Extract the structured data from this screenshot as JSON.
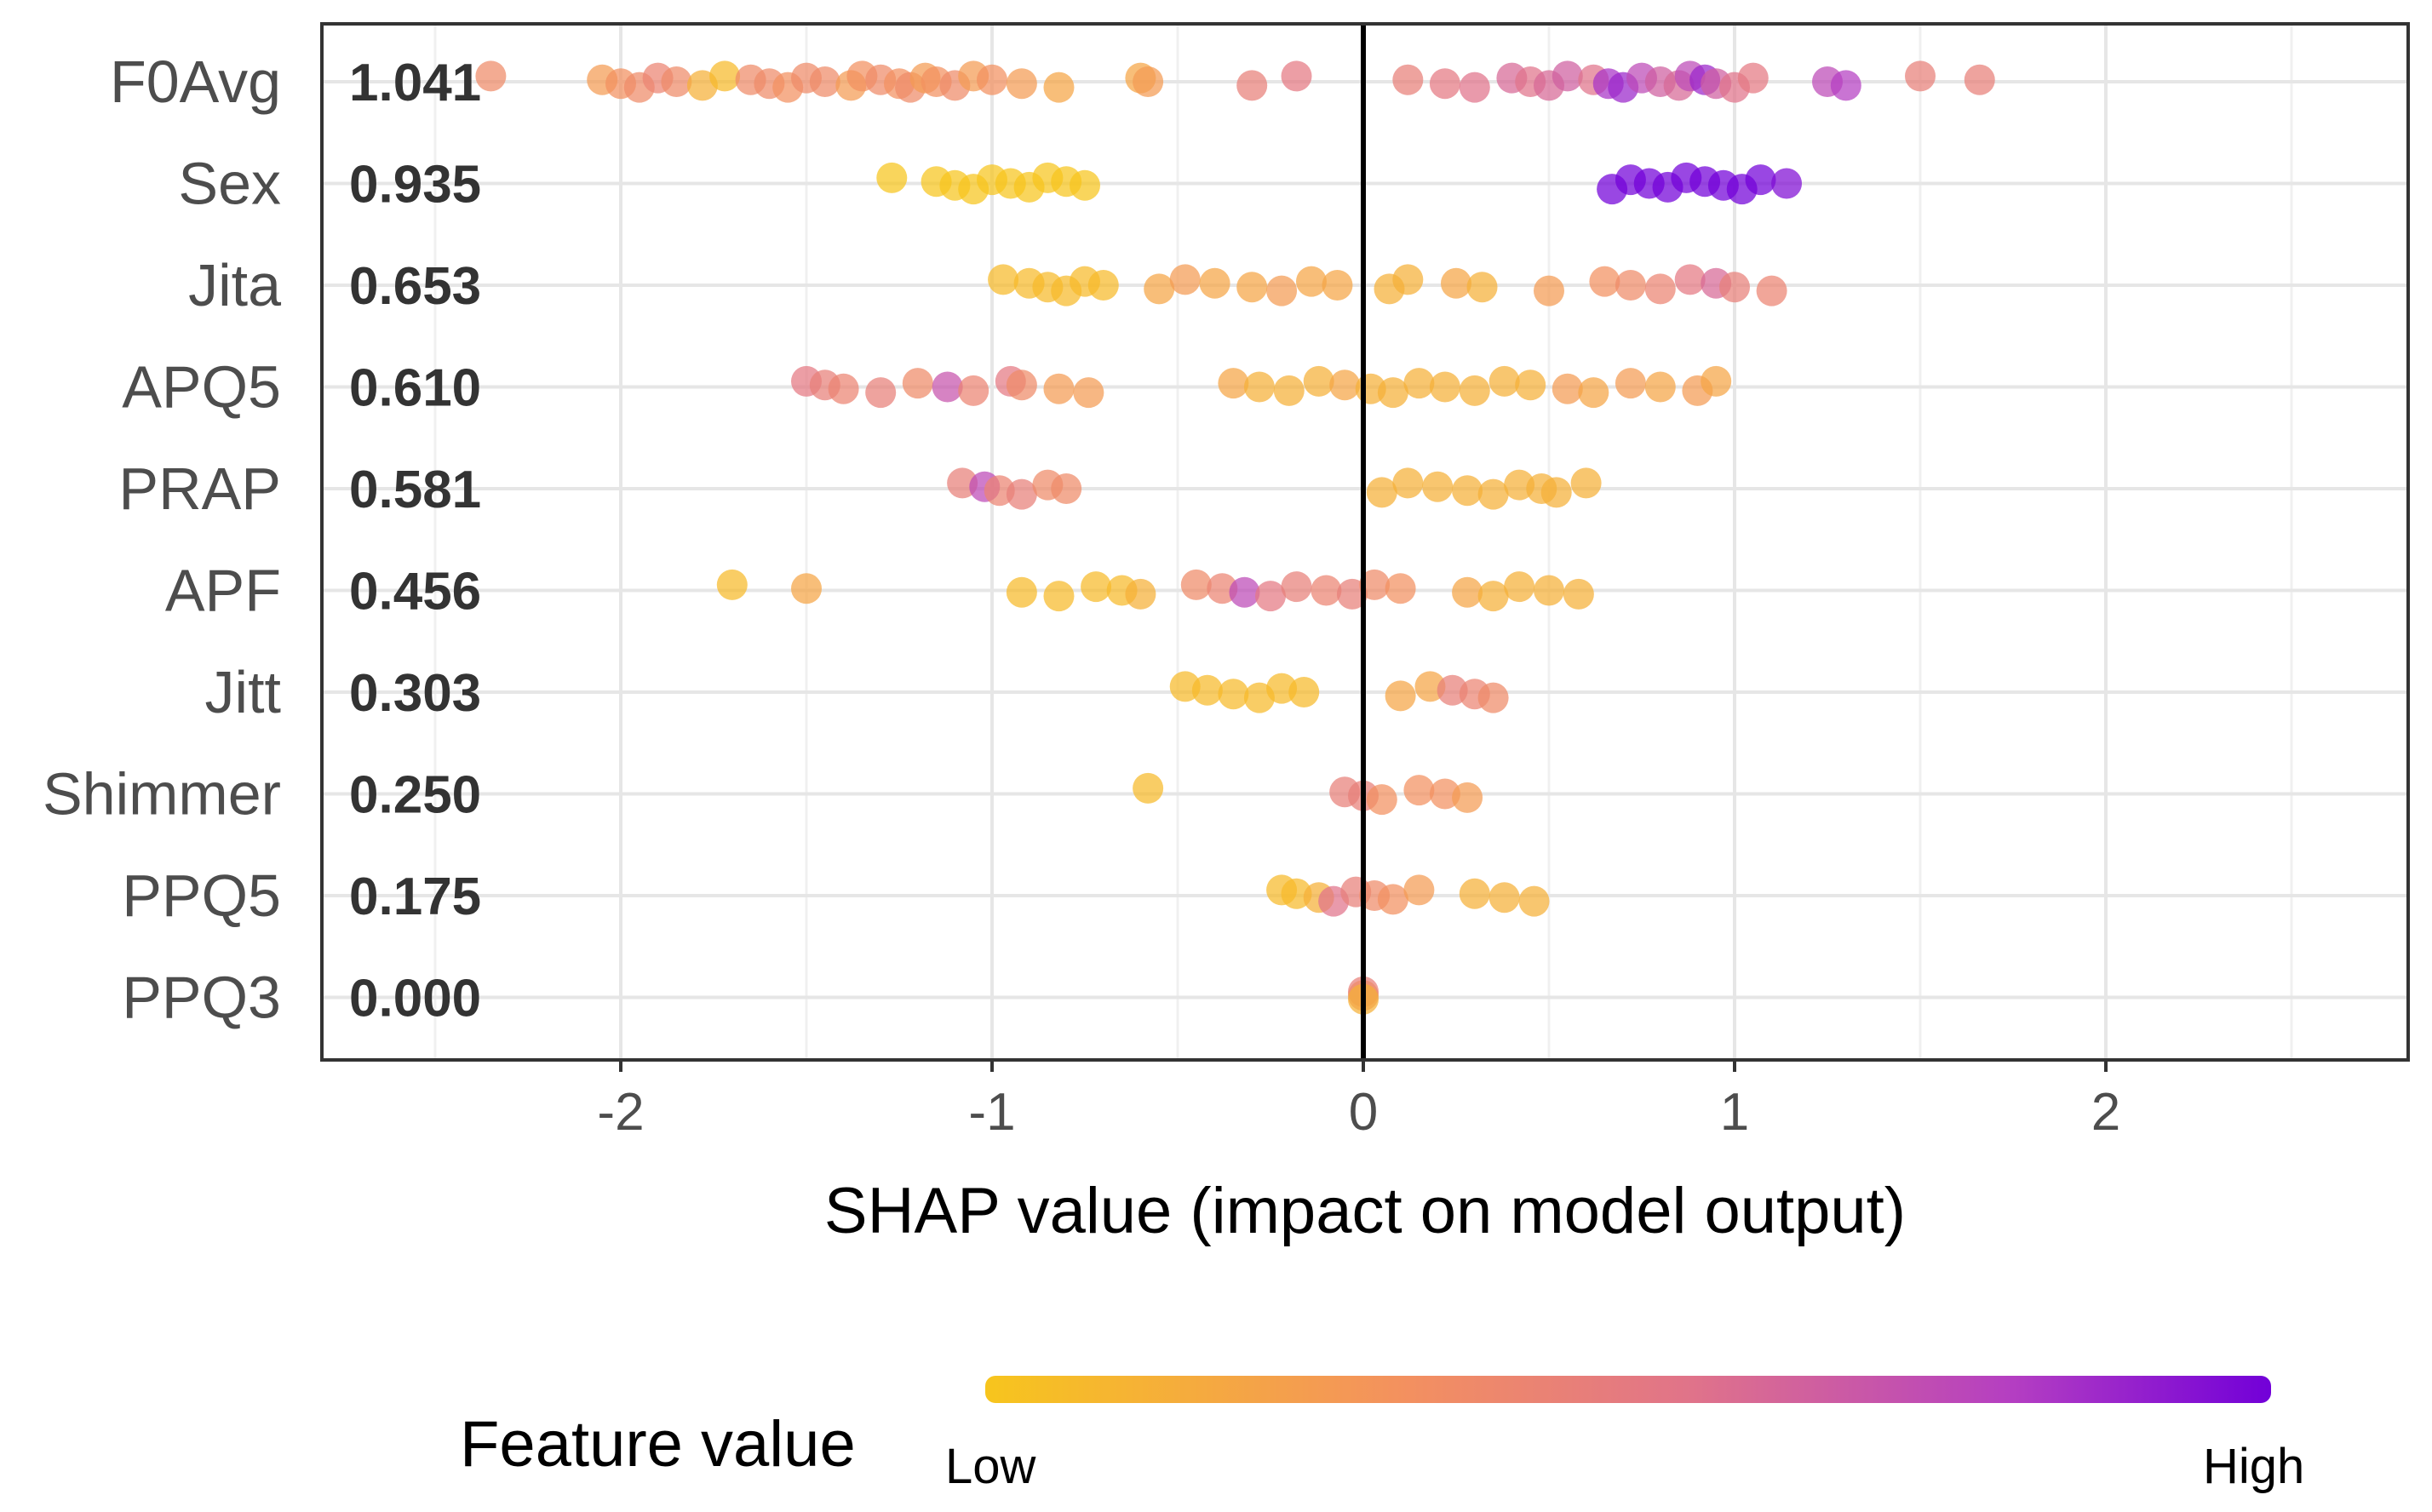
{
  "chart_data": {
    "type": "scatter",
    "title": "",
    "xlabel": "SHAP value (impact on model output)",
    "ylabel": "",
    "xlim": [
      -2.8,
      2.8
    ],
    "xticks": [
      -2,
      -1,
      0,
      1,
      2
    ],
    "xtick_labels": [
      "-2",
      "-1",
      "0",
      "1",
      "2"
    ],
    "grid": true,
    "zero_line": true,
    "features": [
      {
        "name": "F0Avg",
        "importance": "1.041",
        "points": [
          [
            -2.35,
            0.3
          ],
          [
            -2.05,
            0.2
          ],
          [
            -2.0,
            0.25
          ],
          [
            -1.95,
            0.3
          ],
          [
            -1.9,
            0.35
          ],
          [
            -1.85,
            0.3
          ],
          [
            -1.78,
            0.1
          ],
          [
            -1.72,
            0.05
          ],
          [
            -1.65,
            0.3
          ],
          [
            -1.6,
            0.3
          ],
          [
            -1.55,
            0.25
          ],
          [
            -1.5,
            0.3
          ],
          [
            -1.45,
            0.3
          ],
          [
            -1.38,
            0.2
          ],
          [
            -1.35,
            0.25
          ],
          [
            -1.3,
            0.3
          ],
          [
            -1.25,
            0.25
          ],
          [
            -1.22,
            0.3
          ],
          [
            -1.18,
            0.2
          ],
          [
            -1.15,
            0.25
          ],
          [
            -1.1,
            0.3
          ],
          [
            -1.05,
            0.2
          ],
          [
            -1.0,
            0.25
          ],
          [
            -0.92,
            0.2
          ],
          [
            -0.82,
            0.15
          ],
          [
            -0.6,
            0.15
          ],
          [
            -0.58,
            0.2
          ],
          [
            -0.3,
            0.4
          ],
          [
            -0.18,
            0.45
          ],
          [
            0.12,
            0.4
          ],
          [
            0.22,
            0.45
          ],
          [
            0.3,
            0.5
          ],
          [
            0.4,
            0.55
          ],
          [
            0.45,
            0.5
          ],
          [
            0.5,
            0.55
          ],
          [
            0.55,
            0.6
          ],
          [
            0.62,
            0.5
          ],
          [
            0.66,
            0.8
          ],
          [
            0.7,
            0.85
          ],
          [
            0.75,
            0.7
          ],
          [
            0.8,
            0.6
          ],
          [
            0.85,
            0.55
          ],
          [
            0.88,
            0.7
          ],
          [
            0.92,
            0.85
          ],
          [
            0.95,
            0.6
          ],
          [
            1.0,
            0.5
          ],
          [
            1.05,
            0.45
          ],
          [
            1.25,
            0.7
          ],
          [
            1.3,
            0.75
          ],
          [
            1.5,
            0.4
          ],
          [
            1.66,
            0.4
          ]
        ]
      },
      {
        "name": "Sex",
        "importance": "0.935",
        "points": [
          [
            -1.27,
            0.0
          ],
          [
            -1.15,
            0.0
          ],
          [
            -1.1,
            0.0
          ],
          [
            -1.05,
            0.0
          ],
          [
            -1.0,
            0.0
          ],
          [
            -0.95,
            0.0
          ],
          [
            -0.9,
            0.0
          ],
          [
            -0.85,
            0.0
          ],
          [
            -0.8,
            0.0
          ],
          [
            -0.75,
            0.0
          ],
          [
            0.67,
            1.0
          ],
          [
            0.72,
            1.0
          ],
          [
            0.77,
            1.0
          ],
          [
            0.82,
            1.0
          ],
          [
            0.87,
            1.0
          ],
          [
            0.92,
            1.0
          ],
          [
            0.97,
            1.0
          ],
          [
            1.02,
            1.0
          ],
          [
            1.07,
            1.0
          ],
          [
            1.14,
            0.95
          ]
        ]
      },
      {
        "name": "Jita",
        "importance": "0.653",
        "points": [
          [
            -0.97,
            0.05
          ],
          [
            -0.9,
            0.05
          ],
          [
            -0.85,
            0.05
          ],
          [
            -0.8,
            0.05
          ],
          [
            -0.75,
            0.05
          ],
          [
            -0.7,
            0.05
          ],
          [
            -0.55,
            0.15
          ],
          [
            -0.48,
            0.2
          ],
          [
            -0.4,
            0.15
          ],
          [
            -0.3,
            0.15
          ],
          [
            -0.22,
            0.2
          ],
          [
            -0.14,
            0.15
          ],
          [
            -0.07,
            0.15
          ],
          [
            0.07,
            0.1
          ],
          [
            0.12,
            0.1
          ],
          [
            0.25,
            0.15
          ],
          [
            0.32,
            0.1
          ],
          [
            0.5,
            0.2
          ],
          [
            0.65,
            0.25
          ],
          [
            0.72,
            0.3
          ],
          [
            0.8,
            0.35
          ],
          [
            0.88,
            0.45
          ],
          [
            0.95,
            0.55
          ],
          [
            1.0,
            0.4
          ],
          [
            1.1,
            0.35
          ]
        ]
      },
      {
        "name": "APQ5",
        "importance": "0.610",
        "points": [
          [
            -1.5,
            0.45
          ],
          [
            -1.45,
            0.4
          ],
          [
            -1.4,
            0.35
          ],
          [
            -1.3,
            0.4
          ],
          [
            -1.2,
            0.3
          ],
          [
            -1.12,
            0.65
          ],
          [
            -1.05,
            0.35
          ],
          [
            -0.95,
            0.45
          ],
          [
            -0.92,
            0.3
          ],
          [
            -0.82,
            0.2
          ],
          [
            -0.74,
            0.2
          ],
          [
            -0.35,
            0.15
          ],
          [
            -0.28,
            0.1
          ],
          [
            -0.2,
            0.1
          ],
          [
            -0.12,
            0.1
          ],
          [
            -0.05,
            0.15
          ],
          [
            0.02,
            0.1
          ],
          [
            0.08,
            0.1
          ],
          [
            0.15,
            0.1
          ],
          [
            0.22,
            0.1
          ],
          [
            0.3,
            0.1
          ],
          [
            0.38,
            0.1
          ],
          [
            0.45,
            0.1
          ],
          [
            0.55,
            0.2
          ],
          [
            0.62,
            0.15
          ],
          [
            0.72,
            0.2
          ],
          [
            0.8,
            0.15
          ],
          [
            0.9,
            0.2
          ],
          [
            0.95,
            0.15
          ]
        ]
      },
      {
        "name": "PRAP",
        "importance": "0.581",
        "points": [
          [
            -1.08,
            0.4
          ],
          [
            -1.02,
            0.7
          ],
          [
            -0.98,
            0.35
          ],
          [
            -0.92,
            0.4
          ],
          [
            -0.85,
            0.3
          ],
          [
            -0.8,
            0.3
          ],
          [
            0.05,
            0.1
          ],
          [
            0.12,
            0.1
          ],
          [
            0.2,
            0.1
          ],
          [
            0.28,
            0.1
          ],
          [
            0.35,
            0.1
          ],
          [
            0.42,
            0.1
          ],
          [
            0.48,
            0.1
          ],
          [
            0.52,
            0.1
          ],
          [
            0.6,
            0.1
          ]
        ]
      },
      {
        "name": "APF",
        "importance": "0.456",
        "points": [
          [
            -1.7,
            0.05
          ],
          [
            -1.5,
            0.15
          ],
          [
            -0.92,
            0.05
          ],
          [
            -0.82,
            0.05
          ],
          [
            -0.72,
            0.05
          ],
          [
            -0.65,
            0.05
          ],
          [
            -0.6,
            0.1
          ],
          [
            -0.45,
            0.3
          ],
          [
            -0.38,
            0.35
          ],
          [
            -0.32,
            0.7
          ],
          [
            -0.25,
            0.45
          ],
          [
            -0.18,
            0.4
          ],
          [
            -0.1,
            0.35
          ],
          [
            -0.03,
            0.4
          ],
          [
            0.03,
            0.3
          ],
          [
            0.1,
            0.25
          ],
          [
            0.28,
            0.15
          ],
          [
            0.35,
            0.1
          ],
          [
            0.42,
            0.1
          ],
          [
            0.5,
            0.1
          ],
          [
            0.58,
            0.1
          ]
        ]
      },
      {
        "name": "Jitt",
        "importance": "0.303",
        "points": [
          [
            -0.48,
            0.05
          ],
          [
            -0.42,
            0.05
          ],
          [
            -0.35,
            0.05
          ],
          [
            -0.28,
            0.05
          ],
          [
            -0.22,
            0.05
          ],
          [
            -0.16,
            0.05
          ],
          [
            0.1,
            0.15
          ],
          [
            0.18,
            0.15
          ],
          [
            0.24,
            0.4
          ],
          [
            0.3,
            0.35
          ],
          [
            0.35,
            0.3
          ]
        ]
      },
      {
        "name": "Shimmer",
        "importance": "0.250",
        "points": [
          [
            -0.58,
            0.05
          ],
          [
            -0.05,
            0.4
          ],
          [
            0.0,
            0.4
          ],
          [
            0.05,
            0.25
          ],
          [
            0.15,
            0.25
          ],
          [
            0.22,
            0.25
          ],
          [
            0.28,
            0.2
          ]
        ]
      },
      {
        "name": "PPQ5",
        "importance": "0.175",
        "points": [
          [
            -0.22,
            0.05
          ],
          [
            -0.18,
            0.05
          ],
          [
            -0.12,
            0.1
          ],
          [
            -0.08,
            0.5
          ],
          [
            -0.02,
            0.4
          ],
          [
            0.03,
            0.3
          ],
          [
            0.08,
            0.25
          ],
          [
            0.15,
            0.2
          ],
          [
            0.3,
            0.1
          ],
          [
            0.38,
            0.1
          ],
          [
            0.46,
            0.1
          ]
        ]
      },
      {
        "name": "PPQ3",
        "importance": "0.000",
        "points": [
          [
            0.0,
            0.4
          ],
          [
            0.0,
            0.3
          ],
          [
            0.0,
            0.1
          ]
        ]
      }
    ],
    "legend": {
      "title": "Feature value",
      "low_label": "Low",
      "high_label": "High",
      "placement": "bottom",
      "colors": [
        "#f7c51d",
        "#f39060",
        "#e0738a",
        "#b43ec2",
        "#7200d8"
      ]
    }
  }
}
